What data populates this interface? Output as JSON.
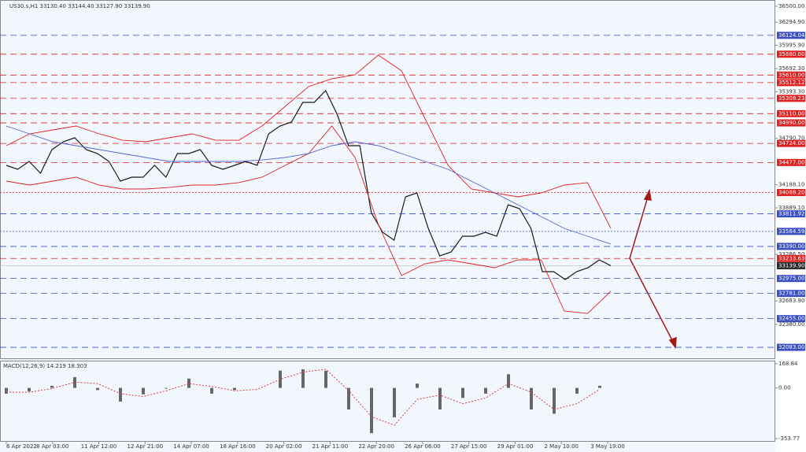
{
  "symbol_label": "US30.s,H1  33130.40 33144.40 33127.90 33139.90",
  "chart_data": [
    {
      "type": "line",
      "x_labels": [
        "6 Apr 2022",
        "8 Apr 03:00",
        "11 Apr 12:00",
        "12 Apr 21:00",
        "14 Apr 07:00",
        "18 Apr 16:00",
        "20 Apr 02:00",
        "21 Apr 11:00",
        "22 Apr 20:00",
        "26 Apr 06:00",
        "27 Apr 15:00",
        "29 Apr 01:00",
        "2 May 10:00",
        "3 May 19:00"
      ],
      "ylim": [
        31941,
        36582
      ],
      "yticks": [
        {
          "value": 36500,
          "label": "36500.00"
        },
        {
          "value": 36294.9,
          "label": "36294.90"
        },
        {
          "value": 35995.9,
          "label": "35995.90"
        },
        {
          "value": 35692.3,
          "label": "35692.30"
        },
        {
          "value": 35393.3,
          "label": "35393.30"
        },
        {
          "value": 34790.7,
          "label": "34790.70"
        },
        {
          "value": 34188.1,
          "label": "34188.10"
        },
        {
          "value": 33889.1,
          "label": "33889.10"
        },
        {
          "value": 33286.5,
          "label": "33286.50"
        },
        {
          "value": 32683.9,
          "label": "32683.90"
        },
        {
          "value": 32380,
          "label": "32380.00"
        }
      ],
      "levels": [
        {
          "value": 36124.04,
          "label": "36124.04",
          "color": "#3b4fc4",
          "dash": "8 5"
        },
        {
          "value": 35880,
          "label": "35880.00",
          "color": "#e02020",
          "dash": "8 5"
        },
        {
          "value": 35610,
          "label": "35610.00",
          "color": "#e02020",
          "dash": "8 5"
        },
        {
          "value": 35512.12,
          "label": "35512.12",
          "color": "#e02020",
          "dash": "8 5"
        },
        {
          "value": 35308.23,
          "label": "35308.23",
          "color": "#e02020",
          "dash": "8 5"
        },
        {
          "value": 35110,
          "label": "35110.00",
          "color": "#e02020",
          "dash": "8 5"
        },
        {
          "value": 34990,
          "label": "34990.00",
          "color": "#e02020",
          "dash": "8 5"
        },
        {
          "value": 34724,
          "label": "34724.00",
          "color": "#e02020",
          "dash": "8 5"
        },
        {
          "value": 34477,
          "label": "34477.00",
          "color": "#e02020",
          "dash": "8 5"
        },
        {
          "value": 34088.2,
          "label": "34088.20",
          "color": "#e02020",
          "dash": "2 2"
        },
        {
          "value": 33811.92,
          "label": "33811.92",
          "color": "#3b4fc4",
          "dash": "8 5"
        },
        {
          "value": 33584.59,
          "label": "33584.59",
          "color": "#3b4fc4",
          "dash": "2 2"
        },
        {
          "value": 33390,
          "label": "33390.00",
          "color": "#3b4fc4",
          "dash": "8 5"
        },
        {
          "value": 33233.63,
          "label": "33233.63",
          "color": "#e02020",
          "dash": "8 5"
        },
        {
          "value": 32975,
          "label": "32975.00",
          "color": "#3b4fc4",
          "dash": "8 5"
        },
        {
          "value": 32781,
          "label": "32781.00",
          "color": "#3b4fc4",
          "dash": "8 5"
        },
        {
          "value": 32455,
          "label": "32455.00",
          "color": "#3b4fc4",
          "dash": "8 5"
        },
        {
          "value": 32083,
          "label": "32083.00",
          "color": "#3b4fc4",
          "dash": "8 5"
        }
      ],
      "current_price": {
        "value": 33139.9,
        "label": "33139.90"
      },
      "series": [
        {
          "color": "#1a1a1a",
          "values": [
            34440,
            34389,
            34491,
            34338,
            34644,
            34746,
            34797,
            34644,
            34593,
            34491,
            34236,
            34287,
            34287,
            34440,
            34287,
            34593,
            34593,
            34644,
            34440,
            34389,
            34440,
            34491,
            34440,
            34848,
            34950,
            35001,
            35256,
            35256,
            35409,
            35103,
            34695,
            34695,
            33828,
            33573,
            33471,
            34032,
            34083,
            33624,
            33267,
            33318,
            33522,
            33522,
            33573,
            33522,
            33930,
            33879,
            33624,
            33063,
            33063,
            32961,
            33063,
            33114,
            33216,
            33140
          ]
        },
        {
          "color": "#e02020",
          "values": [
            34695,
            34848,
            34899,
            34950,
            34848,
            34766,
            34746,
            34797,
            34848,
            34766,
            34766,
            34950,
            35205,
            35460,
            35562,
            35613,
            35868,
            35664,
            35052,
            34440,
            34134,
            34083,
            34032,
            34083,
            34185,
            34216,
            33624
          ]
        },
        {
          "color": "#e02020",
          "values": [
            34236,
            34185,
            34236,
            34287,
            34185,
            34134,
            34134,
            34154,
            34185,
            34185,
            34216,
            34287,
            34440,
            34593,
            34950,
            34542,
            33675,
            33012,
            33165,
            33216,
            33165,
            33114,
            33216,
            33216,
            32553,
            32522,
            32808
          ]
        },
        {
          "color": "#5066d8",
          "values": [
            34950,
            34848,
            34746,
            34695,
            34644,
            34593,
            34542,
            34491,
            34491,
            34491,
            34491,
            34511,
            34542,
            34593,
            34695,
            34746,
            34695,
            34593,
            34491,
            34389,
            34236,
            34083,
            33930,
            33777,
            33624,
            33522,
            33420
          ]
        }
      ]
    },
    {
      "type": "bar",
      "title": "MACD(12,26,9) 14.219 18.303",
      "ylim": [
        -370,
        190
      ],
      "yticks": [
        {
          "value": 168.84,
          "label": "168.84"
        },
        {
          "value": 0,
          "label": "0.00"
        },
        {
          "value": -353.77,
          "label": "-353.77"
        }
      ],
      "color": "#666666",
      "values": [
        -40,
        -25,
        15,
        75,
        -15,
        -95,
        -45,
        -5,
        65,
        -40,
        -15,
        0,
        120,
        130,
        120,
        -150,
        -315,
        -205,
        30,
        -150,
        -70,
        -40,
        95,
        -150,
        -180,
        -40,
        15
      ],
      "signal": {
        "color": "#d04040",
        "values": [
          -30,
          -30,
          -5,
          40,
          30,
          -40,
          -60,
          -20,
          30,
          10,
          -20,
          -10,
          60,
          110,
          130,
          -20,
          -200,
          -260,
          -80,
          -50,
          -110,
          -70,
          30,
          -30,
          -150,
          -110,
          -10
        ]
      }
    }
  ]
}
